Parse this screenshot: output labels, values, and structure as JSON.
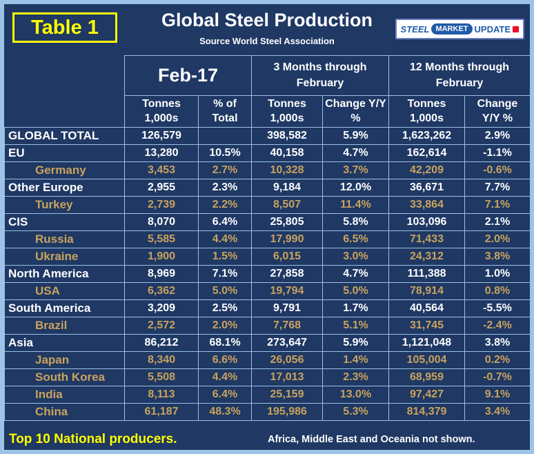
{
  "header": {
    "table_label": "Table 1",
    "title": "Global Steel Production",
    "source": "Source World Steel Association",
    "logo": {
      "steel": "STEEL",
      "market": "MARKET",
      "update": "UPDATE"
    }
  },
  "colors": {
    "background": "#1F3864",
    "frame": "#9DC3E6",
    "grid": "#9DC3E6",
    "region_text": "#FFFFFF",
    "country_text": "#C9A35E",
    "accent_yellow": "#FFFF00",
    "logo_blue": "#1F5AA8",
    "logo_red": "#E8112D"
  },
  "chart_data": {
    "type": "table",
    "title": "Global Steel Production",
    "source": "Source World Steel Association",
    "column_groups": [
      {
        "label": "Feb-17",
        "span": 2
      },
      {
        "label": "3 Months through February",
        "span": 2
      },
      {
        "label": "12 Months through February",
        "span": 2
      }
    ],
    "sub_columns": [
      "Tonnes 1,000s",
      "% of Total",
      "Tonnes 1,000s",
      "Change Y/Y %",
      "Tonnes 1,000s",
      "Change Y/Y %"
    ],
    "rows": [
      {
        "name": "GLOBAL TOTAL",
        "level": "region",
        "cells": [
          "126,579",
          "",
          "398,582",
          "5.9%",
          "1,623,262",
          "2.9%"
        ]
      },
      {
        "name": "EU",
        "level": "region",
        "cells": [
          "13,280",
          "10.5%",
          "40,158",
          "4.7%",
          "162,614",
          "-1.1%"
        ]
      },
      {
        "name": "Germany",
        "level": "country",
        "cells": [
          "3,453",
          "2.7%",
          "10,328",
          "3.7%",
          "42,209",
          "-0.6%"
        ]
      },
      {
        "name": "Other Europe",
        "level": "region",
        "cells": [
          "2,955",
          "2.3%",
          "9,184",
          "12.0%",
          "36,671",
          "7.7%"
        ]
      },
      {
        "name": "Turkey",
        "level": "country",
        "cells": [
          "2,739",
          "2.2%",
          "8,507",
          "11.4%",
          "33,864",
          "7.1%"
        ]
      },
      {
        "name": "CIS",
        "level": "region",
        "cells": [
          "8,070",
          "6.4%",
          "25,805",
          "5.8%",
          "103,096",
          "2.1%"
        ]
      },
      {
        "name": "Russia",
        "level": "country",
        "cells": [
          "5,585",
          "4.4%",
          "17,990",
          "6.5%",
          "71,433",
          "2.0%"
        ]
      },
      {
        "name": "Ukraine",
        "level": "country",
        "cells": [
          "1,900",
          "1.5%",
          "6,015",
          "3.0%",
          "24,312",
          "3.8%"
        ]
      },
      {
        "name": "North America",
        "level": "region",
        "cells": [
          "8,969",
          "7.1%",
          "27,858",
          "4.7%",
          "111,388",
          "1.0%"
        ]
      },
      {
        "name": "USA",
        "level": "country",
        "cells": [
          "6,362",
          "5.0%",
          "19,794",
          "5.0%",
          "78,914",
          "0.8%"
        ]
      },
      {
        "name": "South America",
        "level": "region",
        "cells": [
          "3,209",
          "2.5%",
          "9,791",
          "1.7%",
          "40,564",
          "-5.5%"
        ]
      },
      {
        "name": "Brazil",
        "level": "country",
        "cells": [
          "2,572",
          "2.0%",
          "7,768",
          "5.1%",
          "31,745",
          "-2.4%"
        ]
      },
      {
        "name": "Asia",
        "level": "region",
        "cells": [
          "86,212",
          "68.1%",
          "273,647",
          "5.9%",
          "1,121,048",
          "3.8%"
        ]
      },
      {
        "name": "Japan",
        "level": "country",
        "cells": [
          "8,340",
          "6.6%",
          "26,056",
          "1.4%",
          "105,004",
          "0.2%"
        ]
      },
      {
        "name": "South Korea",
        "level": "country",
        "cells": [
          "5,508",
          "4.4%",
          "17,013",
          "2.3%",
          "68,959",
          "-0.7%"
        ]
      },
      {
        "name": "India",
        "level": "country",
        "cells": [
          "8,113",
          "6.4%",
          "25,159",
          "13.0%",
          "97,427",
          "9.1%"
        ]
      },
      {
        "name": "China",
        "level": "country",
        "cells": [
          "61,187",
          "48.3%",
          "195,986",
          "5.3%",
          "814,379",
          "3.4%"
        ]
      }
    ]
  },
  "footer": {
    "left": "Top 10 National producers.",
    "right": "Africa, Middle East and Oceania not shown."
  }
}
